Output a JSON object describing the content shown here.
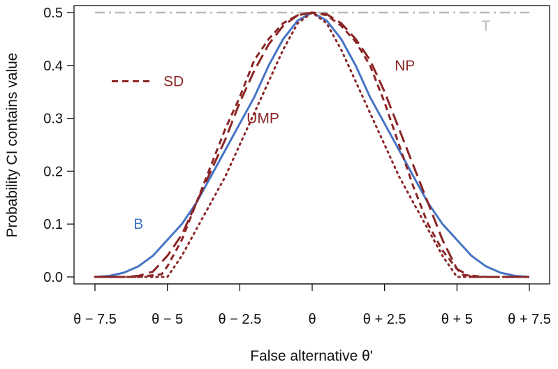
{
  "chart_data": {
    "type": "line",
    "title": "",
    "xlabel": "False alternative θ'",
    "ylabel": "Probability CI contains value",
    "xlim": [
      -7.5,
      7.5
    ],
    "ylim": [
      0,
      0.5
    ],
    "x_ticks": [
      -7.5,
      -5,
      -2.5,
      0,
      2.5,
      5,
      7.5
    ],
    "x_tick_labels": [
      "θ − 7.5",
      "θ − 5",
      "θ − 2.5",
      "θ",
      "θ + 2.5",
      "θ + 5",
      "θ + 7.5"
    ],
    "y_ticks": [
      0,
      0.1,
      0.2,
      0.3,
      0.4,
      0.5
    ],
    "y_tick_labels": [
      "0.0",
      "0.1",
      "0.2",
      "0.3",
      "0.4",
      "0.5"
    ],
    "grid": false,
    "legend": {
      "placement": "upper-left",
      "entries": [
        "SD"
      ]
    },
    "series": [
      {
        "name": "T",
        "color": "#b7bab9",
        "style": "dashdot",
        "x": [
          -7.5,
          7.5
        ],
        "y": [
          0.5,
          0.5
        ]
      },
      {
        "name": "B",
        "color": "#4674c4",
        "style": "solid",
        "x": [
          -7.5,
          -7,
          -6.5,
          -6,
          -5.5,
          -5,
          -4.5,
          -4,
          -3.5,
          -3,
          -2.5,
          -2,
          -1.5,
          -1,
          -0.5,
          0,
          0.5,
          1,
          1.5,
          2,
          2.5,
          3,
          3.5,
          4,
          4.5,
          5,
          5.5,
          6,
          6.5,
          7,
          7.5
        ],
        "y": [
          0.0,
          0.002,
          0.008,
          0.02,
          0.04,
          0.07,
          0.1,
          0.14,
          0.19,
          0.24,
          0.29,
          0.34,
          0.4,
          0.45,
          0.485,
          0.5,
          0.485,
          0.45,
          0.4,
          0.34,
          0.29,
          0.24,
          0.19,
          0.14,
          0.1,
          0.07,
          0.04,
          0.02,
          0.008,
          0.002,
          0.0
        ]
      },
      {
        "name": "SD",
        "color": "#8b2525",
        "style": "dashed",
        "x": [
          -7.5,
          -6,
          -5.2,
          -5,
          -4.5,
          -4,
          -3.5,
          -3,
          -2.5,
          -2,
          -1.5,
          -1,
          -0.5,
          0,
          0.5,
          1,
          1.5,
          2,
          2.5,
          3,
          3.5,
          4,
          4.5,
          5,
          5.2,
          6,
          7.5
        ],
        "y": [
          0.0,
          0.0,
          0.005,
          0.02,
          0.07,
          0.14,
          0.21,
          0.28,
          0.34,
          0.41,
          0.45,
          0.48,
          0.495,
          0.5,
          0.495,
          0.475,
          0.445,
          0.4,
          0.33,
          0.25,
          0.17,
          0.1,
          0.05,
          0.015,
          0.004,
          0.0,
          0.0
        ]
      },
      {
        "name": "NP",
        "color": "#8b2525",
        "style": "longdash",
        "x": [
          -7.5,
          -6.5,
          -6,
          -5.5,
          -5,
          -4.5,
          -4,
          -3.5,
          -3,
          -2.5,
          -2,
          -1.5,
          -1,
          -0.5,
          0,
          0.5,
          1,
          1.5,
          2,
          2.5,
          3,
          3.5,
          4,
          4.5,
          5,
          5.5,
          6,
          6.5,
          7.5
        ],
        "y": [
          0.0,
          0.0,
          0.002,
          0.01,
          0.04,
          0.08,
          0.14,
          0.2,
          0.26,
          0.33,
          0.39,
          0.44,
          0.475,
          0.495,
          0.5,
          0.497,
          0.48,
          0.45,
          0.41,
          0.35,
          0.28,
          0.21,
          0.14,
          0.07,
          0.015,
          0.0,
          0.0,
          0.0,
          0.0
        ]
      },
      {
        "name": "UMP",
        "color": "#8b2525",
        "style": "dotted",
        "x": [
          -7.5,
          -5.5,
          -5,
          -4.5,
          -4,
          -3.5,
          -3,
          -2.5,
          -2,
          -1.5,
          -1,
          -0.5,
          0,
          0.5,
          1,
          1.5,
          2,
          2.5,
          3,
          3.5,
          4,
          4.5,
          5,
          5.5,
          7.5
        ],
        "y": [
          0.0,
          0.0,
          0.0,
          0.04,
          0.09,
          0.14,
          0.19,
          0.25,
          0.31,
          0.37,
          0.43,
          0.48,
          0.5,
          0.48,
          0.43,
          0.37,
          0.31,
          0.25,
          0.19,
          0.14,
          0.09,
          0.04,
          0.0,
          0.0,
          0.0
        ]
      }
    ],
    "annotations": [
      {
        "text": "T",
        "x": 6.0,
        "y": 0.475,
        "color": "#b7bab9"
      },
      {
        "text": "NP",
        "x": 3.2,
        "y": 0.4,
        "color": "#8b2525"
      },
      {
        "text": "UMP",
        "x": -1.7,
        "y": 0.3,
        "color": "#8b2525"
      },
      {
        "text": "B",
        "x": -6.0,
        "y": 0.1,
        "color": "#4674c4"
      }
    ],
    "legend_label": "SD",
    "legend_color": "#8b2525"
  }
}
